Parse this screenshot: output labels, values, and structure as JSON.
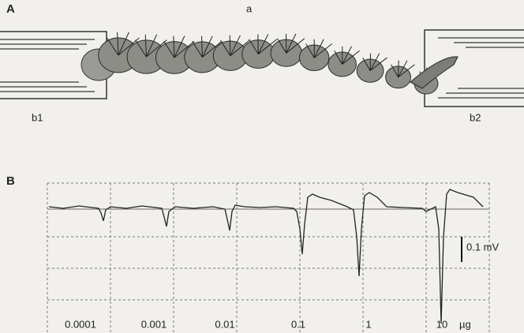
{
  "panel_a": {
    "label": "A",
    "antenna_label": "a",
    "electrodes": [
      "b1",
      "b2"
    ]
  },
  "panel_b": {
    "label": "B",
    "scale_bar": "0.1 mV",
    "doses": [
      "0.0001",
      "0.001",
      "0.01",
      "0.1",
      "1",
      "10"
    ],
    "unit": "µg"
  }
}
